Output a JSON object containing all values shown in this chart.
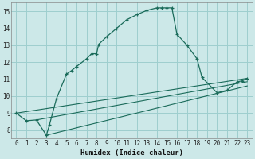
{
  "xlabel": "Humidex (Indice chaleur)",
  "bg_color": "#cce8e8",
  "grid_color": "#9ecece",
  "line_color": "#1a6b5a",
  "xlim": [
    -0.5,
    23.5
  ],
  "ylim": [
    7.5,
    15.5
  ],
  "xticks": [
    0,
    1,
    2,
    3,
    4,
    5,
    6,
    7,
    8,
    9,
    10,
    11,
    12,
    13,
    14,
    15,
    16,
    17,
    18,
    19,
    20,
    21,
    22,
    23
  ],
  "yticks": [
    8,
    9,
    10,
    11,
    12,
    13,
    14,
    15
  ],
  "main_curve": [
    [
      0,
      9.0
    ],
    [
      1,
      8.55
    ],
    [
      2,
      8.6
    ],
    [
      3,
      7.7
    ],
    [
      3.3,
      8.3
    ],
    [
      4,
      9.85
    ],
    [
      5,
      11.3
    ],
    [
      5.5,
      11.5
    ],
    [
      6,
      11.75
    ],
    [
      7,
      12.2
    ],
    [
      7.5,
      12.5
    ],
    [
      8,
      12.5
    ],
    [
      8.2,
      13.05
    ],
    [
      9,
      13.5
    ],
    [
      10,
      14.0
    ],
    [
      11,
      14.5
    ],
    [
      12,
      14.8
    ],
    [
      13,
      15.05
    ],
    [
      14,
      15.2
    ],
    [
      14.5,
      15.2
    ],
    [
      15,
      15.2
    ],
    [
      15.5,
      15.2
    ],
    [
      16,
      13.65
    ],
    [
      17,
      13.0
    ],
    [
      18,
      12.2
    ],
    [
      18.5,
      11.1
    ],
    [
      20,
      10.2
    ],
    [
      21,
      10.35
    ],
    [
      22,
      10.85
    ],
    [
      22.5,
      10.9
    ],
    [
      23,
      11.05
    ]
  ],
  "line2": [
    [
      0,
      9.0
    ],
    [
      23,
      11.05
    ]
  ],
  "line3": [
    [
      2,
      8.6
    ],
    [
      23,
      10.85
    ]
  ],
  "line4": [
    [
      3,
      7.7
    ],
    [
      23,
      10.6
    ]
  ]
}
